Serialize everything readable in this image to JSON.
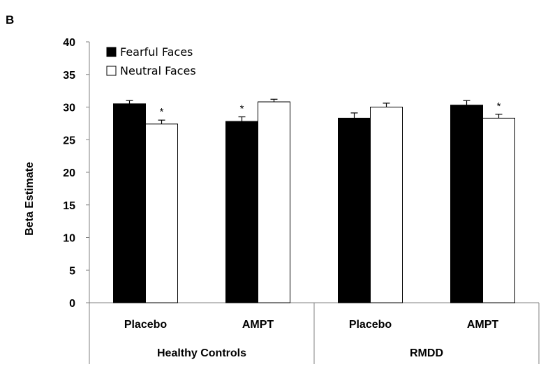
{
  "panel_label": "B",
  "chart_data": {
    "type": "bar",
    "title": "",
    "ylabel": "Beta Estimate",
    "xlabel": "",
    "ylim": [
      0,
      40
    ],
    "yticks": [
      0,
      5,
      10,
      15,
      20,
      25,
      30,
      35,
      40
    ],
    "grid": false,
    "legend_position": "top-left",
    "categories": [
      "Placebo",
      "AMPT",
      "Placebo",
      "AMPT"
    ],
    "groups": [
      {
        "label": "Healthy Controls",
        "categories": [
          0,
          1
        ]
      },
      {
        "label": "RMDD",
        "categories": [
          2,
          3
        ]
      }
    ],
    "series": [
      {
        "name": "Fearful Faces",
        "color": "#000000",
        "values": [
          30.5,
          27.8,
          28.3,
          30.3
        ],
        "errors": [
          0.5,
          0.7,
          0.8,
          0.7
        ],
        "significance": [
          "",
          "*",
          "",
          ""
        ]
      },
      {
        "name": "Neutral Faces",
        "color": "#ffffff",
        "values": [
          27.4,
          30.8,
          30.0,
          28.3
        ],
        "errors": [
          0.6,
          0.4,
          0.6,
          0.6
        ],
        "significance": [
          "*",
          "",
          "",
          "*"
        ]
      }
    ]
  }
}
